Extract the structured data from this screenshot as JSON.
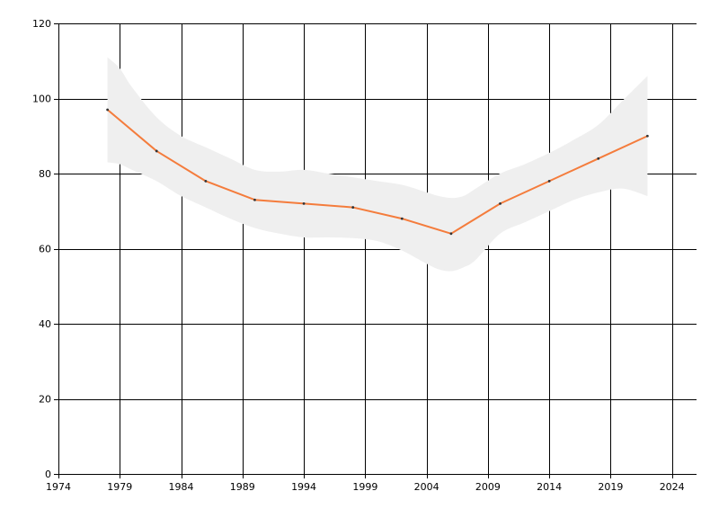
{
  "chart_data": {
    "type": "line",
    "title": "",
    "xlabel": "",
    "ylabel": "",
    "xlim": [
      1974,
      2026
    ],
    "ylim": [
      0,
      120
    ],
    "x_ticks": [
      1974,
      1979,
      1984,
      1989,
      1994,
      1999,
      2004,
      2009,
      2014,
      2019,
      2024
    ],
    "y_ticks": [
      0,
      20,
      40,
      60,
      80,
      100,
      120
    ],
    "grid": true,
    "legend": "none",
    "series": [
      {
        "x": [
          1978,
          1982,
          1986,
          1990,
          1994,
          1998,
          2002,
          2006,
          2010,
          2014,
          2018,
          2022
        ],
        "y": [
          97,
          86,
          78,
          73,
          72,
          71,
          68,
          64,
          72,
          78,
          84,
          90
        ],
        "color": "#f47c3c"
      }
    ],
    "confidence_band": {
      "x": [
        1978,
        1979,
        1980,
        1982,
        1984,
        1986,
        1988,
        1990,
        1992,
        1994,
        1996,
        1998,
        2000,
        2002,
        2004,
        2005,
        2006,
        2007,
        2008,
        2010,
        2012,
        2014,
        2016,
        2018,
        2020,
        2022
      ],
      "upper": [
        111,
        108,
        103,
        95,
        90,
        87,
        84,
        81,
        80.5,
        81,
        80,
        79,
        78,
        77,
        75,
        74,
        73.5,
        74,
        76,
        80,
        82.5,
        85.5,
        89,
        93,
        99.5,
        106
      ],
      "lower": [
        83,
        82.5,
        81,
        78,
        74,
        71,
        68,
        65.5,
        64,
        63,
        63,
        62.8,
        62,
        59.5,
        56,
        54.5,
        54,
        55,
        57,
        64,
        67,
        70,
        73,
        75,
        76,
        74
      ],
      "color": "#efefef"
    },
    "colors": {
      "axis": "#000000",
      "grid": "#000000",
      "line": "#f47c3c",
      "marker": "#333333",
      "band": "#efefef"
    }
  }
}
